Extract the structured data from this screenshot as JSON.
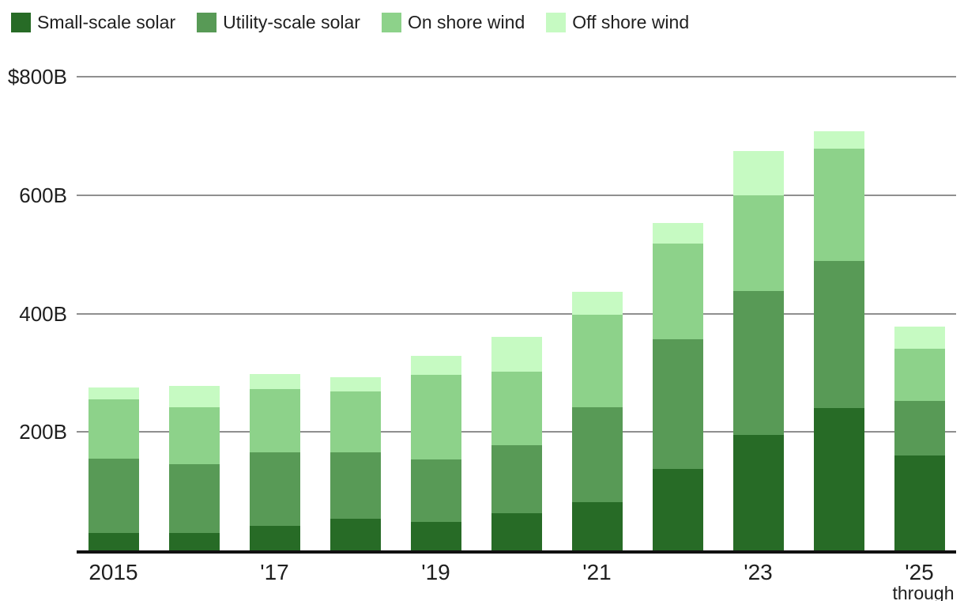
{
  "chart_data": {
    "type": "bar",
    "stacked": true,
    "title": "",
    "unit": "billion USD",
    "legend_position": "top",
    "grid": "horizontal",
    "categories": [
      "2015",
      "2016",
      "2017",
      "2018",
      "2019",
      "2020",
      "2021",
      "2022",
      "2023",
      "2024",
      "2025"
    ],
    "series": [
      {
        "name": "Small-scale solar",
        "color": "#276b26",
        "values": [
          30,
          30,
          41,
          54,
          48,
          63,
          81,
          137,
          195,
          240,
          160
        ]
      },
      {
        "name": "Utility-scale solar",
        "color": "#589a56",
        "values": [
          125,
          115,
          125,
          111,
          106,
          115,
          161,
          219,
          243,
          249,
          93
        ]
      },
      {
        "name": "On shore wind",
        "color": "#8dd28a",
        "values": [
          100,
          97,
          106,
          104,
          142,
          124,
          156,
          162,
          161,
          189,
          87
        ]
      },
      {
        "name": "Off shore wind",
        "color": "#c6fac2",
        "values": [
          20,
          36,
          26,
          24,
          32,
          58,
          39,
          35,
          76,
          30,
          38
        ]
      }
    ],
    "ylim": [
      0,
      800
    ],
    "y_ticks": [
      {
        "label": "$800B",
        "value": 800
      },
      {
        "label": "600B",
        "value": 600
      },
      {
        "label": "400B",
        "value": 400
      },
      {
        "label": "200B",
        "value": 200
      }
    ],
    "x_ticks": [
      {
        "label": "2015",
        "category_index": 0
      },
      {
        "label": "'17",
        "category_index": 2
      },
      {
        "label": "'19",
        "category_index": 4
      },
      {
        "label": "'21",
        "category_index": 6
      },
      {
        "label": "'23",
        "category_index": 8
      },
      {
        "label": "'25",
        "category_index": 10
      }
    ],
    "x_footnote": {
      "label": "through",
      "category_index": 10
    },
    "colors": {
      "gridline": "#8f8f8f",
      "axis_line": "#111111",
      "text": "#1f1f1f",
      "background": "#ffffff"
    }
  }
}
